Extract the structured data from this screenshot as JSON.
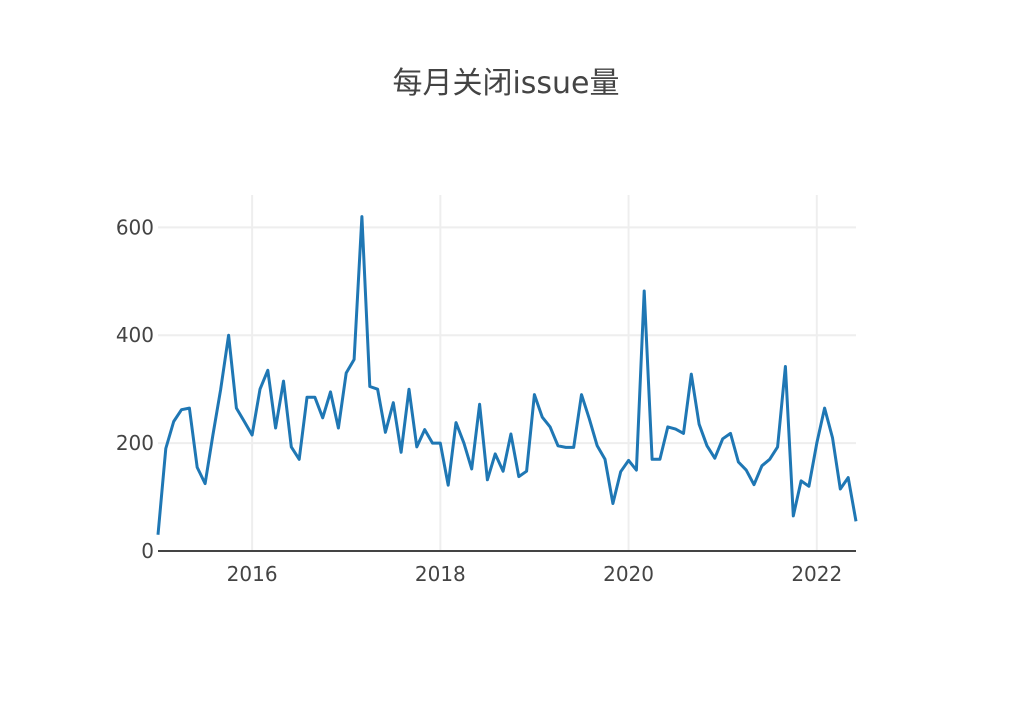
{
  "chart_data": {
    "type": "line",
    "title": "每月关闭issue量",
    "xlabel": "",
    "ylabel": "",
    "x_start": "2015-01",
    "x_end": "2022-06",
    "xlim": [
      "2015-01",
      "2022-06"
    ],
    "ylim": [
      0,
      660
    ],
    "x_ticks": [
      "2016",
      "2018",
      "2020",
      "2022"
    ],
    "y_ticks": [
      "0",
      "200",
      "400",
      "600"
    ],
    "grid": true,
    "line_color": "#1f77b4",
    "series": [
      {
        "values": [
          30,
          190,
          240,
          262,
          265,
          155,
          125,
          215,
          300,
          400,
          265,
          240,
          215,
          300,
          335,
          228,
          315,
          193,
          170,
          285,
          285,
          247,
          295,
          228,
          330,
          355,
          620,
          305,
          300,
          220,
          275,
          183,
          300,
          193,
          225,
          200,
          200,
          122,
          238,
          200,
          152,
          272,
          132,
          180,
          148,
          217,
          138,
          148,
          290,
          248,
          230,
          195,
          192,
          192,
          290,
          245,
          195,
          170,
          88,
          147,
          168,
          150,
          482,
          170,
          170,
          230,
          226,
          218,
          328,
          235,
          195,
          172,
          208,
          218,
          165,
          150,
          123,
          158,
          170,
          193,
          342,
          65,
          130,
          120,
          200,
          265,
          210,
          115,
          136,
          55
        ]
      }
    ]
  }
}
